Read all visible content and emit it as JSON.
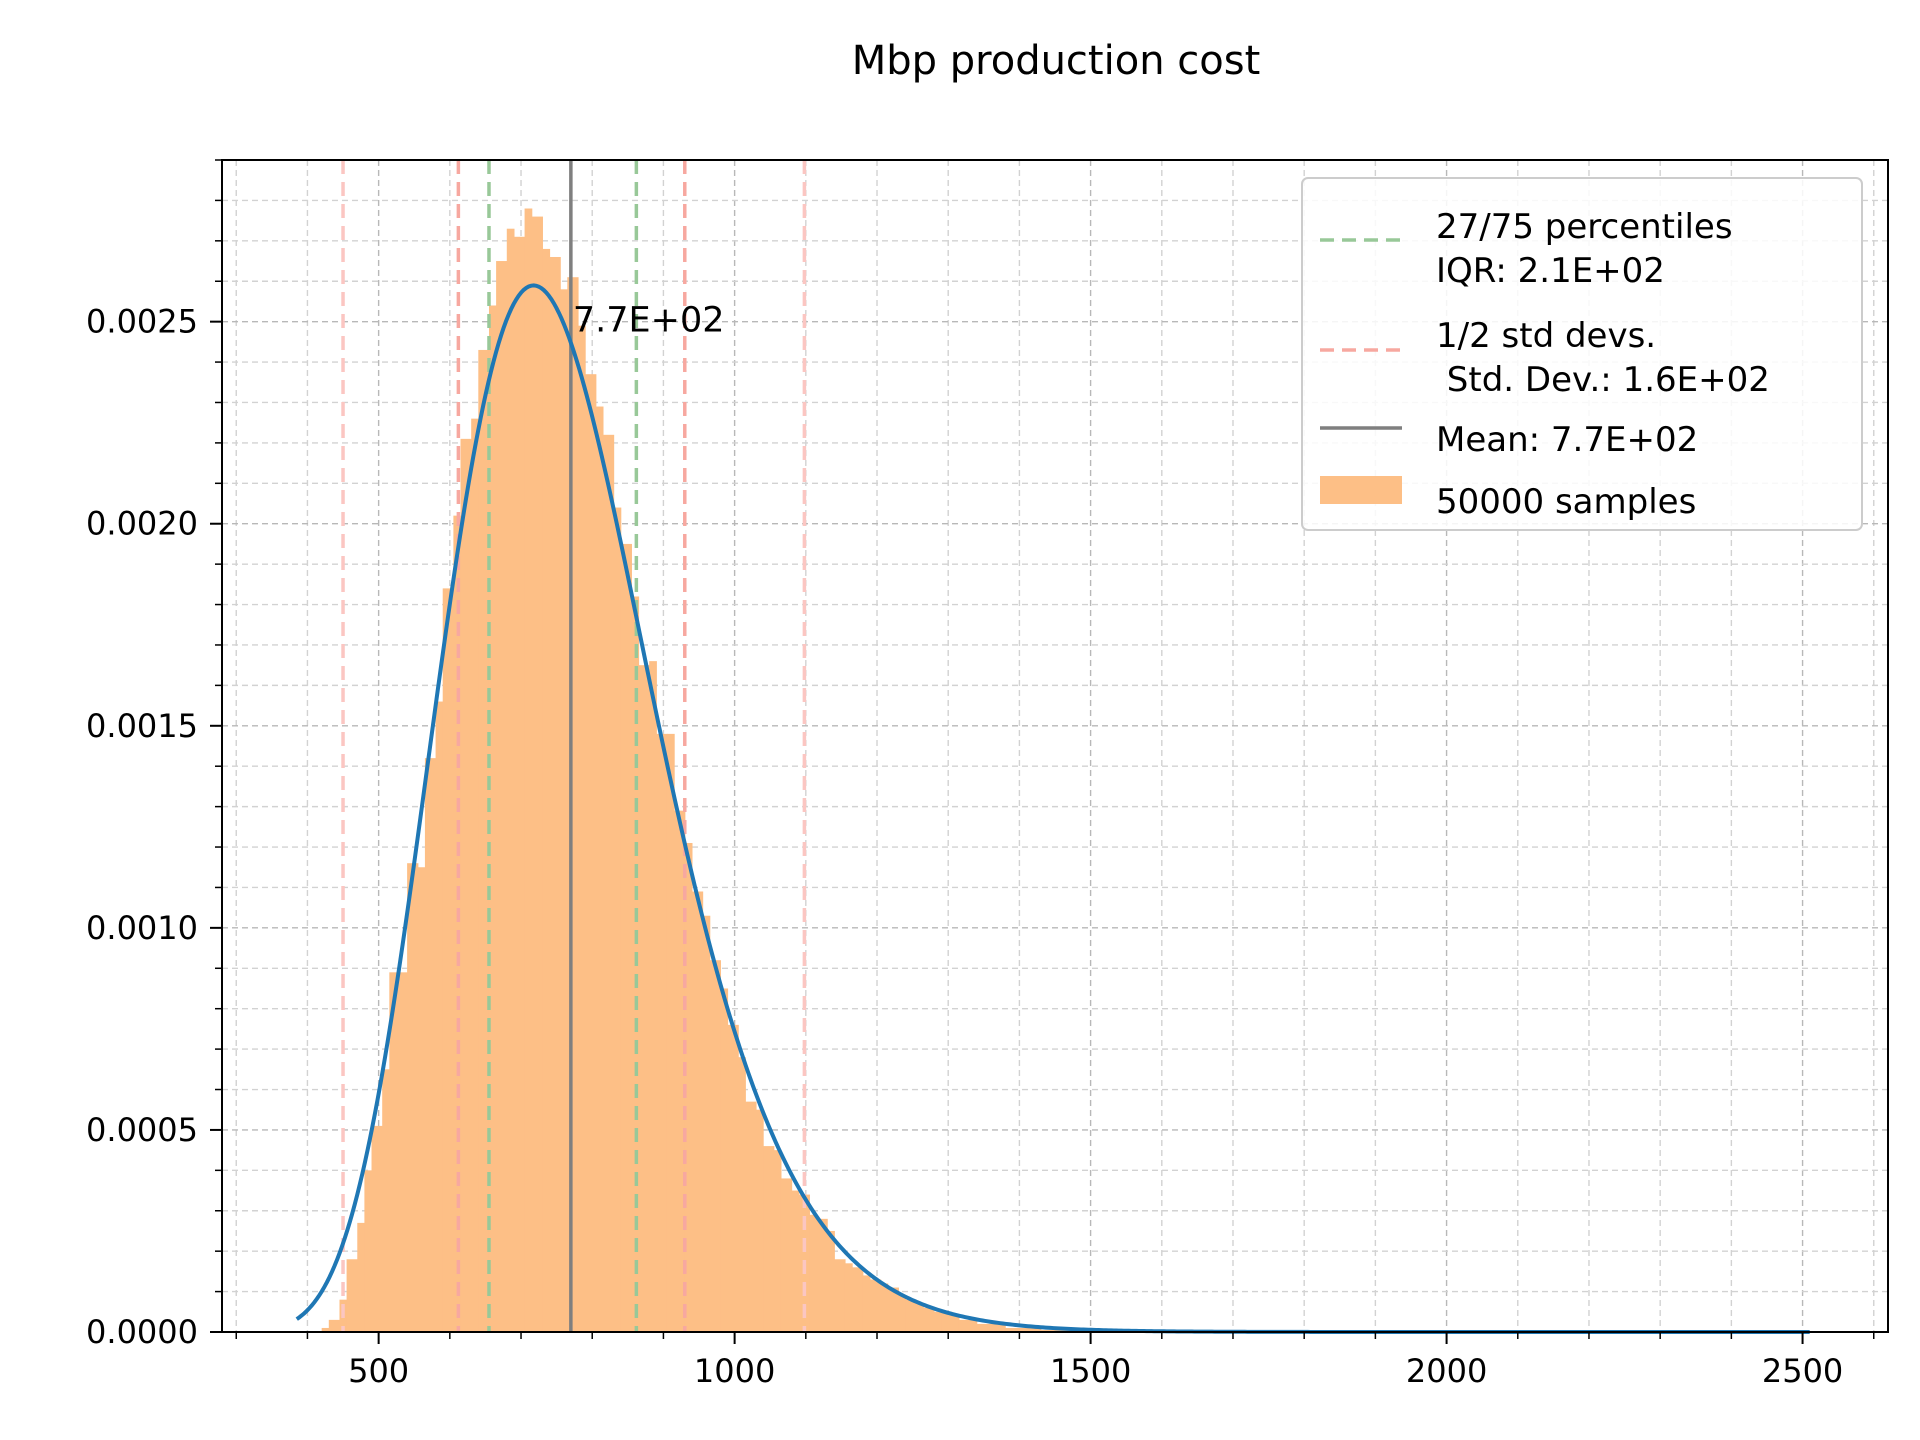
{
  "chart_data": {
    "type": "bar",
    "title": "Mbp production cost",
    "xlabel": "",
    "ylabel": "",
    "xlim": [
      280,
      2620
    ],
    "ylim": [
      0,
      0.0029
    ],
    "x_ticks": [
      500,
      1000,
      1500,
      2000,
      2500
    ],
    "x_tick_labels": [
      "500",
      "1000",
      "1500",
      "2000",
      "2500"
    ],
    "y_ticks": [
      0,
      0.0005,
      0.001,
      0.0015,
      0.002,
      0.0025
    ],
    "y_tick_labels": [
      "0.0000",
      "0.0005",
      "0.0010",
      "0.0015",
      "0.0020",
      "0.0025"
    ],
    "grid": true,
    "legend_position": "top-right",
    "histogram": {
      "name": "50000 samples",
      "color": "#fdbf86",
      "bins": [
        [
          420,
          430,
          1e-05
        ],
        [
          430,
          445,
          3e-05
        ],
        [
          445,
          455,
          8e-05
        ],
        [
          455,
          470,
          0.00018
        ],
        [
          470,
          480,
          0.00027
        ],
        [
          480,
          490,
          0.0004
        ],
        [
          490,
          505,
          0.00051
        ],
        [
          505,
          515,
          0.00065
        ],
        [
          515,
          530,
          0.00089
        ],
        [
          530,
          540,
          0.00089
        ],
        [
          540,
          555,
          0.00116
        ],
        [
          555,
          565,
          0.00115
        ],
        [
          565,
          580,
          0.00142
        ],
        [
          580,
          590,
          0.00156
        ],
        [
          590,
          605,
          0.00184
        ],
        [
          605,
          615,
          0.00202
        ],
        [
          615,
          630,
          0.00221
        ],
        [
          630,
          640,
          0.00226
        ],
        [
          640,
          655,
          0.00243
        ],
        [
          655,
          665,
          0.00254
        ],
        [
          665,
          680,
          0.00265
        ],
        [
          680,
          690,
          0.00273
        ],
        [
          690,
          705,
          0.00271
        ],
        [
          705,
          715,
          0.00278
        ],
        [
          715,
          730,
          0.00276
        ],
        [
          730,
          740,
          0.00268
        ],
        [
          740,
          755,
          0.00266
        ],
        [
          755,
          765,
          0.00258
        ],
        [
          765,
          780,
          0.00261
        ],
        [
          780,
          790,
          0.00249
        ],
        [
          790,
          805,
          0.00237
        ],
        [
          805,
          815,
          0.00229
        ],
        [
          815,
          830,
          0.00222
        ],
        [
          830,
          840,
          0.00204
        ],
        [
          840,
          855,
          0.00195
        ],
        [
          855,
          865,
          0.00182
        ],
        [
          865,
          880,
          0.00165
        ],
        [
          880,
          890,
          0.00166
        ],
        [
          890,
          905,
          0.00148
        ],
        [
          905,
          915,
          0.00148
        ],
        [
          915,
          930,
          0.00129
        ],
        [
          930,
          940,
          0.00121
        ],
        [
          940,
          955,
          0.00109
        ],
        [
          955,
          965,
          0.00103
        ],
        [
          965,
          980,
          0.00092
        ],
        [
          980,
          990,
          0.00085
        ],
        [
          990,
          1005,
          0.00076
        ],
        [
          1005,
          1015,
          0.00068
        ],
        [
          1015,
          1030,
          0.00057
        ],
        [
          1030,
          1040,
          0.00055
        ],
        [
          1040,
          1055,
          0.00046
        ],
        [
          1055,
          1065,
          0.00045
        ],
        [
          1065,
          1080,
          0.00038
        ],
        [
          1080,
          1090,
          0.00035
        ],
        [
          1090,
          1105,
          0.00034
        ],
        [
          1105,
          1115,
          0.00029
        ],
        [
          1115,
          1130,
          0.00028
        ],
        [
          1130,
          1140,
          0.00025
        ],
        [
          1140,
          1155,
          0.00018
        ],
        [
          1155,
          1165,
          0.00017
        ],
        [
          1165,
          1180,
          0.00016
        ],
        [
          1180,
          1190,
          0.00014
        ],
        [
          1190,
          1205,
          0.00013
        ],
        [
          1205,
          1215,
          0.00012
        ],
        [
          1215,
          1230,
          0.00011
        ],
        [
          1230,
          1240,
          9e-05
        ],
        [
          1240,
          1255,
          8e-05
        ],
        [
          1255,
          1265,
          7e-05
        ],
        [
          1265,
          1280,
          6e-05
        ],
        [
          1280,
          1290,
          5e-05
        ],
        [
          1290,
          1305,
          5e-05
        ],
        [
          1305,
          1315,
          4e-05
        ],
        [
          1315,
          1330,
          3e-05
        ],
        [
          1330,
          1340,
          3e-05
        ],
        [
          1340,
          1355,
          2e-05
        ],
        [
          1355,
          1365,
          2e-05
        ],
        [
          1365,
          1380,
          2e-05
        ],
        [
          1380,
          1390,
          1e-05
        ],
        [
          1390,
          1405,
          1e-05
        ],
        [
          1405,
          1415,
          1e-05
        ],
        [
          1415,
          1430,
          1e-05
        ],
        [
          1430,
          1455,
          5e-06
        ],
        [
          1455,
          1480,
          5e-06
        ],
        [
          1480,
          1510,
          3e-06
        ]
      ]
    },
    "pdf_curve": {
      "color": "#1f77b4",
      "x_range": [
        385,
        2510
      ],
      "lognormal_mu": 6.62,
      "lognormal_sigma": 0.21,
      "shift": 0
    },
    "vertical_lines": {
      "mean": {
        "x": 770,
        "label": "Mean: 7.7E+02",
        "color": "#7f7f7f"
      },
      "percentiles": {
        "x": [
          655,
          862
        ],
        "label": "27/75 percentiles",
        "sub_label": "IQR: 2.1E+02",
        "color": "#98c898"
      },
      "std_1": {
        "x": [
          612,
          930
        ],
        "color": "#f7a8a0"
      },
      "std_2": {
        "x": [
          450,
          1098
        ],
        "color": "#fbc6c2"
      },
      "std_label": "1/2 std devs.",
      "std_sub_label": " Std. Dev.: 1.6E+02"
    },
    "annotation": {
      "text": "7.7E+02",
      "x": 770,
      "y": 0.0025
    }
  },
  "legend": {
    "items": [
      {
        "label": "27/75 percentiles",
        "sub": "IQR: 2.1E+02",
        "kind": "dashed",
        "color": "#98c898"
      },
      {
        "label": "1/2 std devs.",
        "sub": " Std. Dev.: 1.6E+02",
        "kind": "dashed",
        "color": "#f7a8a0"
      },
      {
        "label": "Mean: 7.7E+02",
        "kind": "solid",
        "color": "#7f7f7f"
      },
      {
        "label": "50000 samples",
        "kind": "patch",
        "color": "#fdbf86"
      }
    ]
  }
}
